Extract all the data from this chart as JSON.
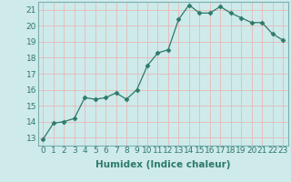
{
  "x": [
    0,
    1,
    2,
    3,
    4,
    5,
    6,
    7,
    8,
    9,
    10,
    11,
    12,
    13,
    14,
    15,
    16,
    17,
    18,
    19,
    20,
    21,
    22,
    23
  ],
  "y": [
    12.9,
    13.9,
    14.0,
    14.2,
    15.5,
    15.4,
    15.5,
    15.8,
    15.4,
    16.0,
    17.5,
    18.3,
    18.5,
    20.4,
    21.3,
    20.8,
    20.8,
    21.2,
    20.8,
    20.5,
    20.2,
    20.2,
    19.5,
    19.1
  ],
  "line_color": "#2d7a6a",
  "marker": "D",
  "marker_size": 2.5,
  "bg_color": "#ceeaea",
  "grid_color": "#e8b8b8",
  "spine_color": "#7ab0b0",
  "xlabel": "Humidex (Indice chaleur)",
  "xlim": [
    -0.5,
    23.5
  ],
  "ylim": [
    12.5,
    21.5
  ],
  "yticks": [
    13,
    14,
    15,
    16,
    17,
    18,
    19,
    20,
    21
  ],
  "xticks": [
    0,
    1,
    2,
    3,
    4,
    5,
    6,
    7,
    8,
    9,
    10,
    11,
    12,
    13,
    14,
    15,
    16,
    17,
    18,
    19,
    20,
    21,
    22,
    23
  ],
  "tick_fontsize": 6.5,
  "label_fontsize": 7.5,
  "tick_color": "#2d7a6a",
  "label_color": "#2d7a6a"
}
